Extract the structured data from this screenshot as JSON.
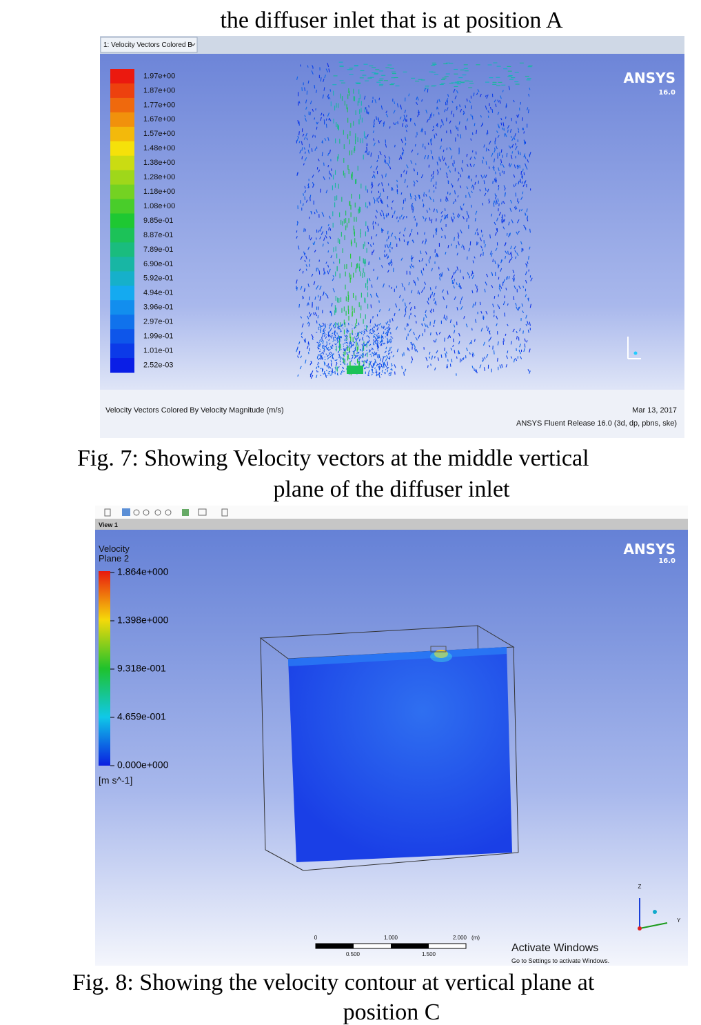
{
  "figure6_caption_tail": "the diffuser inlet that is at position A",
  "figure7": {
    "tab": "1: Velocity Vectors Colored B",
    "legend_labels": [
      "1.97e+00",
      "1.87e+00",
      "1.77e+00",
      "1.67e+00",
      "1.57e+00",
      "1.48e+00",
      "1.38e+00",
      "1.28e+00",
      "1.18e+00",
      "1.08e+00",
      "9.85e-01",
      "8.87e-01",
      "7.89e-01",
      "6.90e-01",
      "5.92e-01",
      "4.94e-01",
      "3.96e-01",
      "2.97e-01",
      "1.99e-01",
      "1.01e-01",
      "2.52e-03"
    ],
    "brand": "ANSYS",
    "version": "16.0",
    "footer_title": "Velocity Vectors Colored By Velocity Magnitude (m/s)",
    "date": "Mar 13, 2017",
    "release": "ANSYS Fluent Release 16.0 (3d, dp, pbns, ske)"
  },
  "figure7_caption": [
    "Fig. 7: Showing Velocity vectors at the middle vertical",
    "plane of the diffuser inlet"
  ],
  "figure8": {
    "view": "View 1",
    "legend_title": [
      "Velocity",
      "Plane 2"
    ],
    "legend_labels": [
      "1.864e+000",
      "1.398e+000",
      "9.318e-001",
      "4.659e-001",
      "0.000e+000"
    ],
    "unit": "[m s^-1]",
    "brand": "ANSYS",
    "version": "16.0",
    "scale_top": [
      "0",
      "1.000",
      "2.000",
      "(m)"
    ],
    "scale_bottom": [
      "0.500",
      "1.500"
    ],
    "axis_z": "Z",
    "axis_y": "Y",
    "watermark": "Activate Windows",
    "watermark_sub": "Go to Settings to activate Windows."
  },
  "figure8_caption": [
    "Fig. 8: Showing the velocity contour at vertical plane at",
    "position C"
  ]
}
